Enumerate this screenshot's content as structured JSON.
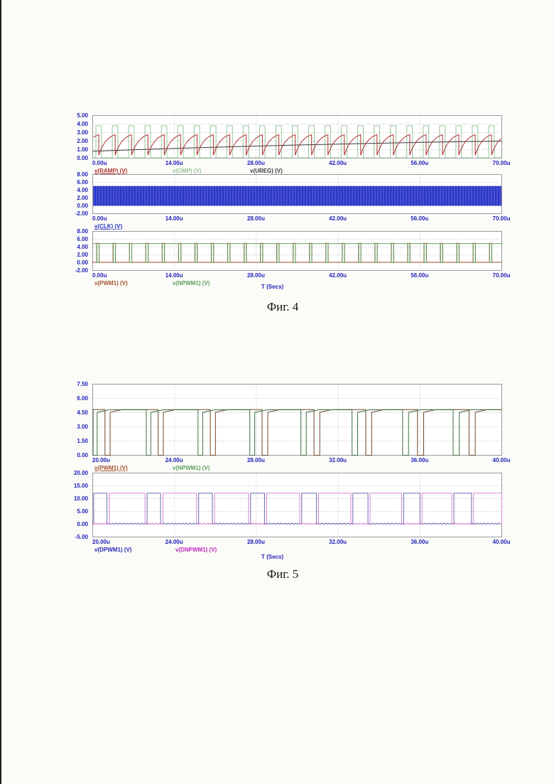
{
  "page": {
    "background": "#fbfbf7",
    "captions": {
      "fig4": "Фиг. 4",
      "fig5": "Фиг. 5"
    },
    "xlabel": "T (Secs)"
  },
  "colors": {
    "tick": "#2222bb",
    "border": "#9a9aa0",
    "grid": "#c2c2ca",
    "ramp": "#b03030",
    "cmp": "#97c497",
    "ureg": "#3a3a3a",
    "clk": "#2a35c8",
    "clk_stripe": "#dfe3ff",
    "pwm1": "#a5552f",
    "pwm1_dark": "#6e4526",
    "npwm1": "#5f9e5f",
    "npwm1_dark": "#3d6e3d",
    "dpwm1": "#6a6ab0",
    "dpwm1_text": "#2a2ab8",
    "dnpwm1": "#d985d9",
    "dnpwm1_text": "#c02ac0",
    "caption": "#151515"
  },
  "chart_data": [
    {
      "id": "fig4-plot1",
      "figure": "Фиг. 4",
      "type": "line",
      "xlim": [
        0,
        70
      ],
      "ylim": [
        0,
        5
      ],
      "grid": true,
      "legend_position": "below",
      "xticks": {
        "values": [
          0,
          14,
          28,
          42,
          56,
          70
        ],
        "labels": [
          "0.00u",
          "14.00u",
          "28.00u",
          "42.00u",
          "56.00u",
          "70.00u"
        ]
      },
      "yticks": {
        "values": [
          5,
          4,
          3,
          2,
          1,
          0
        ],
        "labels": [
          "5.00",
          "4.00",
          "3.00",
          "2.00",
          "1.00",
          "0.00"
        ]
      },
      "layout": {
        "top": 162,
        "height": 60
      },
      "legend": [
        {
          "label": "v(RAMP) (V)",
          "color": "ramp",
          "underline": true,
          "x": 133
        },
        {
          "label": "v(CMP) (V)",
          "color": "cmp",
          "underline": false,
          "x": 243
        },
        {
          "label": "v(UREG) (V)",
          "color": "ureg",
          "underline": false,
          "x": 352
        }
      ],
      "series": [
        {
          "name": "v(CMP)",
          "type": "periodic_pulse",
          "period": 2.8,
          "start_offset": 0.55,
          "width": 0.95,
          "base": 0.04,
          "level": 3.8,
          "color": "cmp"
        },
        {
          "name": "v(UREG)",
          "type": "polyline",
          "color": "ureg",
          "points": [
            [
              0,
              0.82
            ],
            [
              7,
              0.98
            ],
            [
              14,
              1.14
            ],
            [
              21,
              1.28
            ],
            [
              28,
              1.42
            ],
            [
              35,
              1.54
            ],
            [
              42,
              1.65
            ],
            [
              49,
              1.75
            ],
            [
              56,
              1.84
            ],
            [
              63,
              1.93
            ],
            [
              70,
              2.0
            ]
          ]
        },
        {
          "name": "v(RAMP)",
          "type": "sawtooth",
          "period": 2.8,
          "reset_offset": 1.05,
          "ymin": 0.35,
          "ymax": 2.75,
          "curve": 2.2,
          "color": "ramp"
        }
      ]
    },
    {
      "id": "fig4-plot2",
      "figure": "Фиг. 4",
      "type": "line",
      "xlim": [
        0,
        70
      ],
      "ylim": [
        -2,
        8
      ],
      "grid": true,
      "legend_position": "below",
      "xticks": {
        "values": [
          0,
          14,
          28,
          42,
          56,
          70
        ],
        "labels": [
          "0.00u",
          "14.00u",
          "28.00u",
          "42.00u",
          "56.00u",
          "70.00u"
        ]
      },
      "yticks": {
        "values": [
          8,
          6,
          4,
          2,
          0,
          -2
        ],
        "labels": [
          "8.00",
          "6.00",
          "4.00",
          "2.00",
          "0.00",
          "-2.00"
        ]
      },
      "layout": {
        "top": 245,
        "height": 55
      },
      "legend": [
        {
          "label": "v(CLK) (V)",
          "color": "clk",
          "underline": true,
          "x": 133
        }
      ],
      "series": [
        {
          "name": "v(CLK)",
          "type": "clock_fill",
          "base": 0,
          "level": 5.05,
          "stripe_step": 2.0,
          "color": "clk"
        }
      ]
    },
    {
      "id": "fig4-plot3",
      "figure": "Фиг. 4",
      "type": "line",
      "xlim": [
        0,
        70
      ],
      "ylim": [
        -2,
        8
      ],
      "grid": true,
      "legend_position": "below",
      "xlabel": "T (Secs)",
      "xticks": {
        "values": [
          0,
          14,
          28,
          42,
          56,
          70
        ],
        "labels": [
          "0.00u",
          "14.00u",
          "28.00u",
          "42.00u",
          "56.00u",
          "70.00u"
        ]
      },
      "yticks": {
        "values": [
          8,
          6,
          4,
          2,
          0,
          -2
        ],
        "labels": [
          "8.00",
          "6.00",
          "4.00",
          "2.00",
          "0.00",
          "-2.00"
        ]
      },
      "layout": {
        "top": 325,
        "height": 55
      },
      "legend": [
        {
          "label": "v(PWM1) (V)",
          "color": "pwm1",
          "underline": false,
          "x": 133
        },
        {
          "label": "v(NPWM1) (V)",
          "color": "npwm1",
          "underline": false,
          "x": 243
        }
      ],
      "series": [
        {
          "name": "v(PWM1)",
          "type": "periodic_pulse",
          "period": 2.8,
          "start_offset": 0.68,
          "width": 0.42,
          "base": 0.1,
          "level": 4.95,
          "color": "pwm1"
        },
        {
          "name": "v(NPWM1)",
          "type": "periodic_gap",
          "period": 2.8,
          "start_offset": 0.72,
          "width": 0.36,
          "base": 0.0,
          "level": 4.85,
          "color": "npwm1"
        }
      ]
    },
    {
      "id": "fig5-plot1",
      "figure": "Фиг. 5",
      "type": "line",
      "xlim": [
        20,
        40
      ],
      "ylim": [
        0,
        7.5
      ],
      "grid": true,
      "legend_position": "below",
      "xticks": {
        "values": [
          20,
          24,
          28,
          32,
          36,
          40
        ],
        "labels": [
          "20.00u",
          "24.00u",
          "28.00u",
          "32.00u",
          "36.00u",
          "40.00u"
        ]
      },
      "yticks": {
        "values": [
          7.5,
          6,
          4.5,
          3,
          1.5,
          0
        ],
        "labels": [
          "7.50",
          "6.00",
          "4.50",
          "3.00",
          "1.50",
          "0.00"
        ]
      },
      "layout": {
        "top": 540,
        "height": 100
      },
      "legend": [
        {
          "label": "v(PWM1) (V)",
          "color": "pwm1",
          "underline": true,
          "x": 133
        },
        {
          "label": "v(NPWM1) (V)",
          "color": "npwm1",
          "underline": false,
          "x": 243
        }
      ],
      "series": [
        {
          "name": "v(PWM1)",
          "type": "gapped_high",
          "level": 4.82,
          "round": 0.6,
          "color": "pwm1_dark",
          "gaps": [
            [
              20.6,
              20.85
            ],
            [
              23.2,
              23.45
            ],
            [
              25.75,
              26.0
            ],
            [
              28.28,
              28.56
            ],
            [
              30.82,
              31.1
            ],
            [
              33.35,
              33.64
            ],
            [
              35.88,
              36.18
            ],
            [
              38.4,
              38.7
            ]
          ]
        },
        {
          "name": "v(NPWM1)",
          "type": "gapped_high",
          "level": 4.8,
          "round": 0.6,
          "color": "npwm1_dark",
          "gaps": [
            [
              20.02,
              20.22
            ],
            [
              22.62,
              22.84
            ],
            [
              25.15,
              25.38
            ],
            [
              27.68,
              27.92
            ],
            [
              30.18,
              30.44
            ],
            [
              32.68,
              32.95
            ],
            [
              35.15,
              35.44
            ],
            [
              37.62,
              37.92
            ]
          ]
        }
      ]
    },
    {
      "id": "fig5-plot2",
      "figure": "Фиг. 5",
      "type": "line",
      "xlim": [
        20,
        40
      ],
      "ylim": [
        -5,
        20
      ],
      "grid": true,
      "legend_position": "below",
      "xlabel": "T (Secs)",
      "xticks": {
        "values": [
          20,
          24,
          28,
          32,
          36,
          40
        ],
        "labels": [
          "20.00u",
          "24.00u",
          "28.00u",
          "32.00u",
          "36.00u",
          "40.00u"
        ]
      },
      "yticks": {
        "values": [
          20,
          15,
          10,
          5,
          0,
          -5
        ],
        "labels": [
          "20.00",
          "15.00",
          "10.00",
          "5.00",
          "0.00",
          "-5.00"
        ]
      },
      "layout": {
        "top": 665,
        "height": 90
      },
      "legend": [
        {
          "label": "v(DPWM1) (V)",
          "color": "dpwm1_text",
          "underline": false,
          "x": 133
        },
        {
          "label": "v(DNPWM1) (V)",
          "color": "dnpwm1_text",
          "underline": false,
          "x": 247
        }
      ],
      "series": [
        {
          "name": "v(DPWM1)",
          "type": "pulse_train",
          "base": 0,
          "level": 12.1,
          "noise": 0.45,
          "color": "dpwm1",
          "intervals": [
            [
              20.05,
              20.7
            ],
            [
              22.66,
              23.32
            ],
            [
              25.18,
              25.85
            ],
            [
              27.72,
              28.4
            ],
            [
              30.22,
              30.94
            ],
            [
              32.72,
              33.46
            ],
            [
              35.2,
              36.0
            ],
            [
              37.66,
              38.52
            ]
          ]
        },
        {
          "name": "v(DNPWM1)",
          "type": "pulse_train",
          "base": 0,
          "level": 12.15,
          "noise": 0.45,
          "color": "dnpwm1",
          "intervals": [
            [
              20.82,
              22.56
            ],
            [
              23.44,
              25.08
            ],
            [
              25.96,
              27.62
            ],
            [
              28.5,
              30.12
            ],
            [
              31.04,
              32.62
            ],
            [
              33.56,
              35.1
            ],
            [
              36.1,
              37.56
            ],
            [
              38.62,
              40.0
            ]
          ]
        }
      ]
    }
  ]
}
